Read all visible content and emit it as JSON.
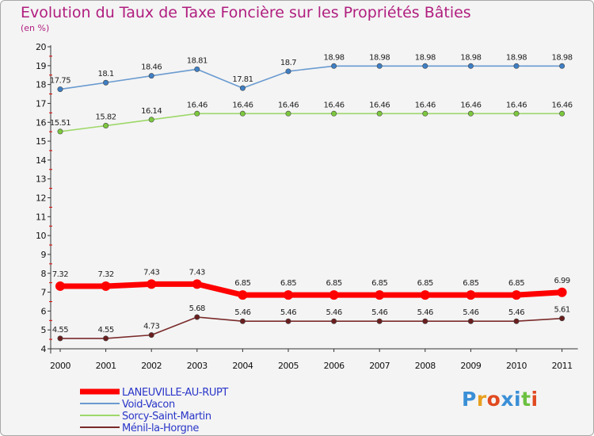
{
  "title": "Evolution du Taux de Taxe Foncière sur les Propriétés Bâties",
  "unit_label": "(en %)",
  "logo_text": "Proxiti",
  "chart_data": {
    "type": "line",
    "title": "Evolution du Taux de Taxe Foncière sur les Propriétés Bâties",
    "ylabel": "(en %)",
    "x": [
      "2000",
      "2001",
      "2002",
      "2003",
      "2004",
      "2005",
      "2006",
      "2007",
      "2008",
      "2009",
      "2010",
      "2011"
    ],
    "ylim": [
      4,
      20
    ],
    "yticks": [
      4,
      5,
      6,
      7,
      8,
      9,
      10,
      11,
      12,
      13,
      14,
      15,
      16,
      17,
      18,
      19,
      20
    ],
    "grid": false,
    "legend_position": "bottom-left",
    "series": [
      {
        "name": "LANEUVILLE-AU-RUPT",
        "color": "#ff0000",
        "marker": "#ff0000",
        "width": 7,
        "marker_r": 6,
        "values": [
          7.32,
          7.32,
          7.43,
          7.43,
          6.85,
          6.85,
          6.85,
          6.85,
          6.85,
          6.85,
          6.85,
          6.99
        ],
        "labels": [
          "7.32",
          "7.32",
          "7.43",
          "7.43",
          "6.85",
          "6.85",
          "6.85",
          "6.85",
          "6.85",
          "6.85",
          "6.85",
          "6.99"
        ]
      },
      {
        "name": "Void-Vacon",
        "color": "#6a9bd0",
        "marker": "#3e7fc4",
        "width": 1.6,
        "marker_r": 3.2,
        "values": [
          17.75,
          18.1,
          18.46,
          18.81,
          17.81,
          18.7,
          18.98,
          18.98,
          18.98,
          18.98,
          18.98,
          18.98
        ],
        "labels": [
          "17.75",
          "18.1",
          "18.46",
          "18.81",
          "17.81",
          "18.7",
          "18.98",
          "18.98",
          "18.98",
          "18.98",
          "18.98",
          "18.98"
        ]
      },
      {
        "name": "Sorcy-Saint-Martin",
        "color": "#9ed86a",
        "marker": "#7cc83e",
        "width": 1.6,
        "marker_r": 3.2,
        "values": [
          15.51,
          15.82,
          16.14,
          16.46,
          16.46,
          16.46,
          16.46,
          16.46,
          16.46,
          16.46,
          16.46,
          16.46
        ],
        "labels": [
          "15.51",
          "15.82",
          "16.14",
          "16.46",
          "16.46",
          "16.46",
          "16.46",
          "16.46",
          "16.46",
          "16.46",
          "16.46",
          "16.46"
        ]
      },
      {
        "name": "Ménil-la-Horgne",
        "color": "#7a2a2a",
        "marker": "#6a1e1e",
        "width": 1.6,
        "marker_r": 3.2,
        "values": [
          4.55,
          4.55,
          4.73,
          5.68,
          5.46,
          5.46,
          5.46,
          5.46,
          5.46,
          5.46,
          5.46,
          5.61
        ],
        "labels": [
          "4.55",
          "4.55",
          "4.73",
          "5.68",
          "5.46",
          "5.46",
          "5.46",
          "5.46",
          "5.46",
          "5.46",
          "5.46",
          "5.61"
        ]
      }
    ]
  }
}
